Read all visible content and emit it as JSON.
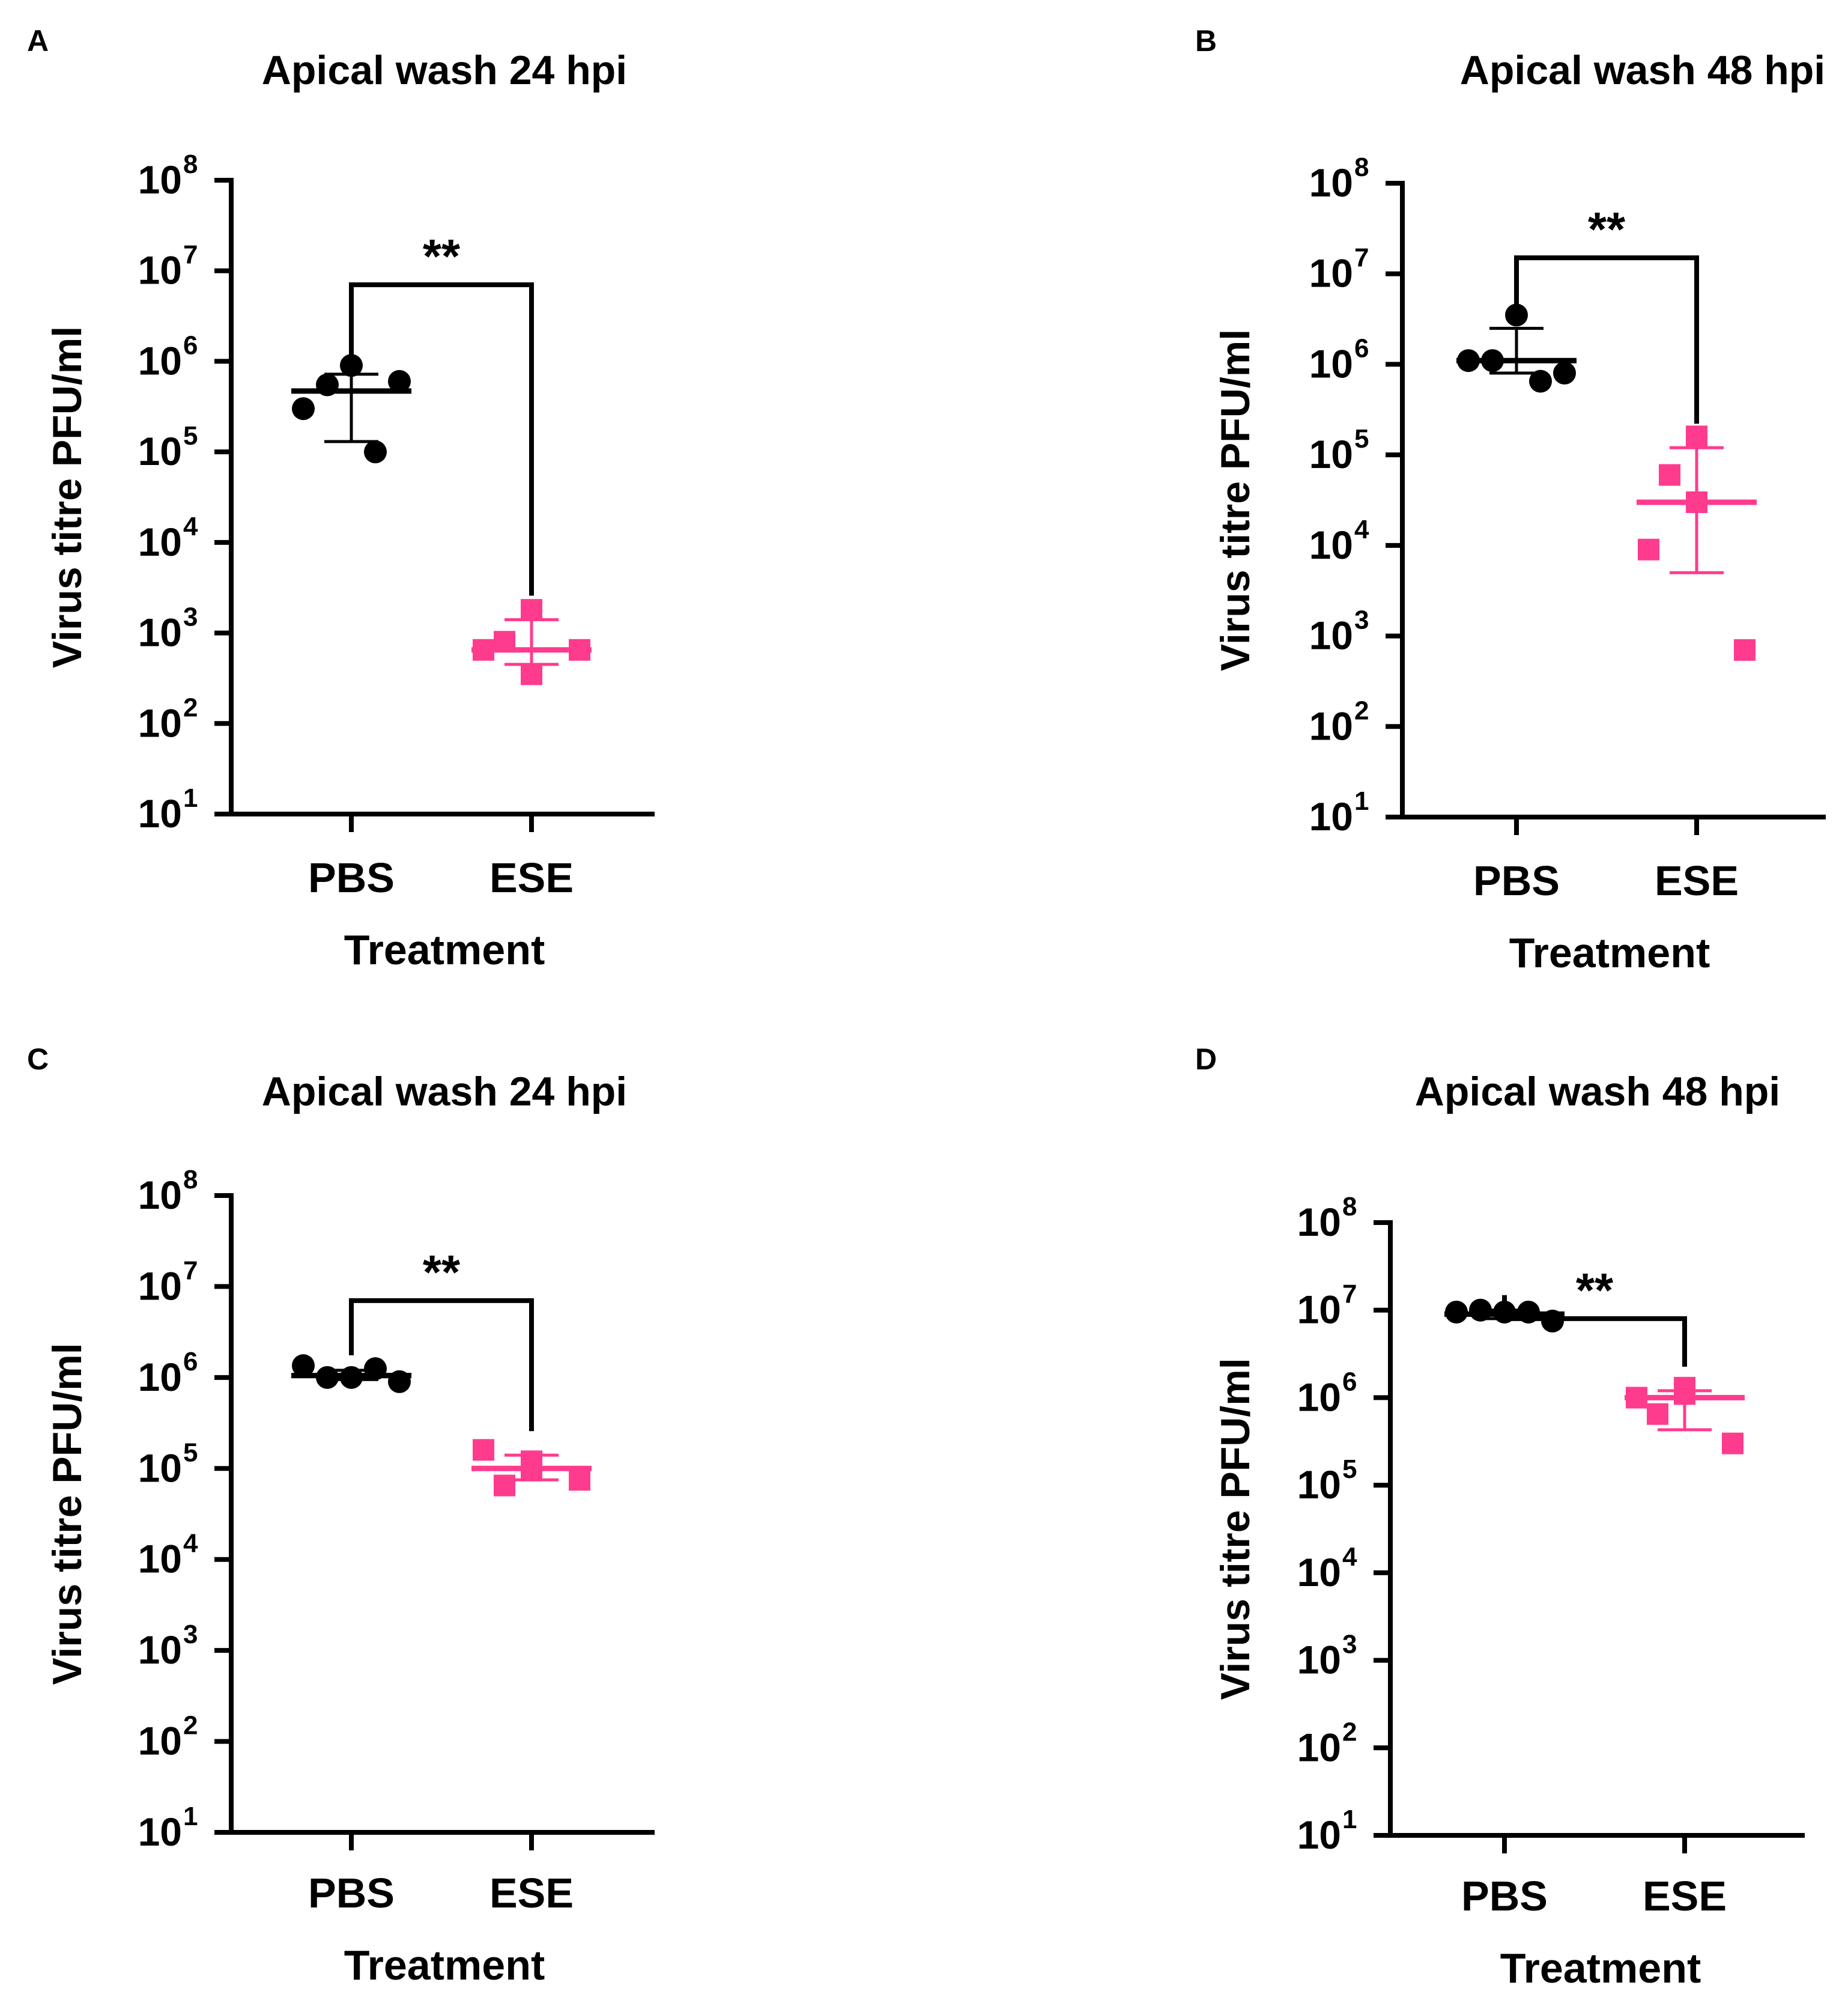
{
  "figure": {
    "colors": {
      "axis": "#000000",
      "pbs": "#000000",
      "ese": "#ff3b8e"
    }
  },
  "chart_data": [
    {
      "panel_label": "A",
      "type": "scatter",
      "title": "Apical wash 24 hpi",
      "xlabel": "Treatment",
      "ylabel": "Virus titre PFU/ml",
      "y_scale": "log",
      "ylim": [
        10,
        100000000
      ],
      "yticks": [
        {
          "base": "10",
          "exp": "1"
        },
        {
          "base": "10",
          "exp": "2"
        },
        {
          "base": "10",
          "exp": "3"
        },
        {
          "base": "10",
          "exp": "4"
        },
        {
          "base": "10",
          "exp": "5"
        },
        {
          "base": "10",
          "exp": "6"
        },
        {
          "base": "10",
          "exp": "7"
        },
        {
          "base": "10",
          "exp": "8"
        }
      ],
      "categories": [
        "PBS",
        "ESE"
      ],
      "groups": [
        {
          "category": "PBS",
          "color": "#000000",
          "marker": "circle",
          "values": [
            900000,
            300000,
            550000,
            100000,
            600000
          ],
          "mean": 470000,
          "err_low": 130000,
          "err_high": 720000
        },
        {
          "category": "ESE",
          "color": "#ff3b8e",
          "marker": "square",
          "values": [
            1800,
            800,
            350,
            650,
            650
          ],
          "mean": 650,
          "err_low": 450,
          "err_high": 1400
        }
      ],
      "significance": {
        "label": "**",
        "y": 7000000
      }
    },
    {
      "panel_label": "B",
      "type": "scatter",
      "title": "Apical wash 48 hpi",
      "xlabel": "Treatment",
      "ylabel": "Virus titre PFU/ml",
      "y_scale": "log",
      "ylim": [
        10,
        100000000
      ],
      "yticks": [
        {
          "base": "10",
          "exp": "1"
        },
        {
          "base": "10",
          "exp": "2"
        },
        {
          "base": "10",
          "exp": "3"
        },
        {
          "base": "10",
          "exp": "4"
        },
        {
          "base": "10",
          "exp": "5"
        },
        {
          "base": "10",
          "exp": "6"
        },
        {
          "base": "10",
          "exp": "7"
        },
        {
          "base": "10",
          "exp": "8"
        }
      ],
      "categories": [
        "PBS",
        "ESE"
      ],
      "groups": [
        {
          "category": "PBS",
          "color": "#000000",
          "marker": "circle",
          "values": [
            3500000,
            1100000,
            1100000,
            650000,
            800000
          ],
          "mean": 1100000,
          "err_low": 800000,
          "err_high": 2500000
        },
        {
          "category": "ESE",
          "color": "#ff3b8e",
          "marker": "square",
          "values": [
            160000,
            60000,
            30000,
            9000,
            700
          ],
          "mean": 30000,
          "err_low": 5000,
          "err_high": 120000
        }
      ],
      "significance": {
        "label": "**",
        "y": 15000000
      }
    },
    {
      "panel_label": "C",
      "type": "scatter",
      "title": "Apical wash 24 hpi",
      "xlabel": "Treatment",
      "ylabel": "Virus titre PFU/ml",
      "y_scale": "log",
      "ylim": [
        10,
        100000000
      ],
      "yticks": [
        {
          "base": "10",
          "exp": "1"
        },
        {
          "base": "10",
          "exp": "2"
        },
        {
          "base": "10",
          "exp": "3"
        },
        {
          "base": "10",
          "exp": "4"
        },
        {
          "base": "10",
          "exp": "5"
        },
        {
          "base": "10",
          "exp": "6"
        },
        {
          "base": "10",
          "exp": "7"
        },
        {
          "base": "10",
          "exp": "8"
        }
      ],
      "categories": [
        "PBS",
        "ESE"
      ],
      "groups": [
        {
          "category": "PBS",
          "color": "#000000",
          "marker": "circle",
          "values": [
            1000000,
            1350000,
            1000000,
            1250000,
            900000
          ],
          "mean": 1050000,
          "err_low": 950000,
          "err_high": 1200000
        },
        {
          "category": "ESE",
          "color": "#ff3b8e",
          "marker": "square",
          "values": [
            120000,
            65000,
            95000,
            160000,
            75000
          ],
          "mean": 100000,
          "err_low": 75000,
          "err_high": 140000
        }
      ],
      "significance": {
        "label": "**",
        "y": 7000000
      }
    },
    {
      "panel_label": "D",
      "type": "scatter",
      "title": "Apical wash 48 hpi",
      "xlabel": "Treatment",
      "ylabel": "Virus titre PFU/ml",
      "y_scale": "log",
      "ylim": [
        10,
        100000000
      ],
      "yticks": [
        {
          "base": "10",
          "exp": "1"
        },
        {
          "base": "10",
          "exp": "2"
        },
        {
          "base": "10",
          "exp": "3"
        },
        {
          "base": "10",
          "exp": "4"
        },
        {
          "base": "10",
          "exp": "5"
        },
        {
          "base": "10",
          "exp": "6"
        },
        {
          "base": "10",
          "exp": "7"
        },
        {
          "base": "10",
          "exp": "8"
        }
      ],
      "categories": [
        "PBS",
        "ESE"
      ],
      "groups": [
        {
          "category": "PBS",
          "color": "#000000",
          "marker": "circle",
          "values": [
            9500000,
            9500000,
            10000000,
            9500000,
            7500000
          ],
          "mean": 9000000,
          "err_low": 8000000,
          "err_high": 10000000
        },
        {
          "category": "ESE",
          "color": "#ff3b8e",
          "marker": "square",
          "values": [
            1100000,
            650000,
            1300000,
            1000000,
            300000
          ],
          "mean": 1000000,
          "err_low": 430000,
          "err_high": 1200000
        }
      ],
      "significance": {
        "label": "**",
        "y": 8000000
      }
    }
  ]
}
